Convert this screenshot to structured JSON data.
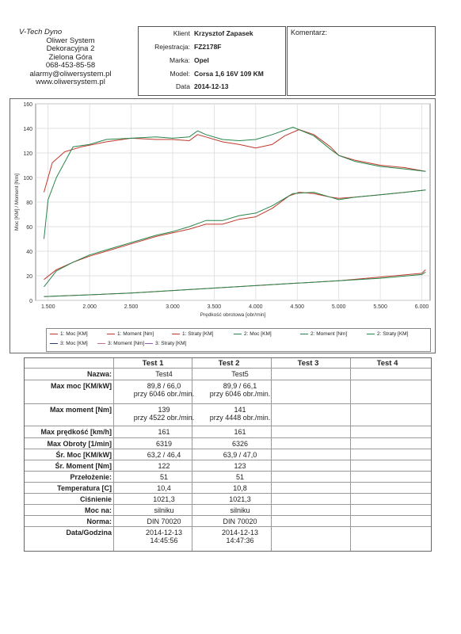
{
  "company": {
    "brand": "V-Tech Dyno",
    "lines": [
      "Oliwer System",
      "Dekoracyjna 2",
      "Zielona Góra",
      "068-453-85-58",
      "alarmy@oliwersystem.pl",
      "www.oliwersystem.pl"
    ]
  },
  "client": {
    "rows": [
      {
        "label": "Klient",
        "value": "Krzysztof Zapasek"
      },
      {
        "label": "Rejestracja:",
        "value": "FZ2178F"
      },
      {
        "label": "Marka:",
        "value": "Opel"
      },
      {
        "label": "Model:",
        "value": "Corsa  1,6 16V   109 KM"
      },
      {
        "label": "Data",
        "value": "2014-12-13"
      }
    ]
  },
  "komentarz_label": "Komentarz:",
  "chart_data": {
    "type": "line",
    "xlabel": "Prędkość obrotowa [obr/min]",
    "ylabel": "Moc [KM] / Moment [Nm]",
    "xlim": [
      1350,
      6100
    ],
    "ylim": [
      0,
      160
    ],
    "x_ticks": [
      "1.500",
      "2.000",
      "2.500",
      "3.000",
      "3.500",
      "4.000",
      "4.500",
      "5.000",
      "5.500",
      "6.000"
    ],
    "x_tick_values": [
      1500,
      2000,
      2500,
      3000,
      3500,
      4000,
      4500,
      5000,
      5500,
      6000
    ],
    "y_ticks": [
      "0",
      "20",
      "40",
      "60",
      "80",
      "100",
      "120",
      "140",
      "160"
    ],
    "y_tick_values": [
      0,
      20,
      40,
      60,
      80,
      100,
      120,
      140,
      160
    ],
    "grid": true,
    "series": [
      {
        "name": "1: Moc [KM]",
        "color": "#c0392b",
        "x": [
          1450,
          1600,
          1800,
          2000,
          2200,
          2500,
          2800,
          3000,
          3200,
          3400,
          3600,
          3800,
          4000,
          4200,
          4400,
          4522,
          4700,
          4900,
          5000,
          5200,
          5500,
          5800,
          6046
        ],
        "y": [
          17,
          25,
          31,
          36,
          40,
          46,
          52,
          55,
          58,
          62,
          62,
          66,
          68,
          75,
          85,
          88,
          87,
          84,
          83,
          84,
          86,
          88,
          89.8
        ]
      },
      {
        "name": "1: Moment [Nm]",
        "color": "#c0392b",
        "x": [
          1450,
          1550,
          1700,
          1900,
          2200,
          2500,
          2800,
          3000,
          3200,
          3300,
          3400,
          3600,
          3800,
          4000,
          4200,
          4350,
          4522,
          4700,
          4900,
          5000,
          5200,
          5500,
          5800,
          6046
        ],
        "y": [
          88,
          112,
          121,
          125,
          129,
          132,
          131,
          131,
          130,
          135,
          133,
          129,
          127,
          124,
          127,
          134,
          139,
          135,
          125,
          118,
          114,
          110,
          108,
          105
        ]
      },
      {
        "name": "1: Straty [KM]",
        "color": "#c0392b",
        "x": [
          1450,
          2000,
          2500,
          3000,
          3500,
          4000,
          4500,
          5000,
          5500,
          6000,
          6046
        ],
        "y": [
          3,
          4.5,
          6,
          8,
          10,
          12,
          14,
          16,
          19,
          22,
          25
        ]
      },
      {
        "name": "2: Moc [KM]",
        "color": "#27864a",
        "x": [
          1450,
          1600,
          1800,
          2000,
          2200,
          2500,
          2800,
          3000,
          3200,
          3400,
          3600,
          3800,
          4000,
          4200,
          4448,
          4700,
          4900,
          5000,
          5200,
          5500,
          5800,
          6046
        ],
        "y": [
          11,
          24,
          31,
          37,
          41,
          47,
          53,
          56,
          60,
          65,
          65,
          69,
          71,
          77,
          87,
          88,
          84,
          82,
          84,
          86,
          88,
          89.9
        ]
      },
      {
        "name": "2: Moment [Nm]",
        "color": "#27864a",
        "x": [
          1450,
          1500,
          1600,
          1800,
          2000,
          2200,
          2500,
          2800,
          3000,
          3200,
          3300,
          3400,
          3600,
          3800,
          4000,
          4200,
          4448,
          4700,
          4900,
          5000,
          5200,
          5500,
          5800,
          6046
        ],
        "y": [
          50,
          82,
          100,
          125,
          127,
          131,
          132,
          133,
          132,
          133,
          138,
          135,
          131,
          130,
          131,
          135,
          141,
          134,
          123,
          118,
          113,
          109,
          107,
          105
        ]
      },
      {
        "name": "2: Straty [KM]",
        "color": "#27864a",
        "x": [
          1450,
          2000,
          2500,
          3000,
          3500,
          4000,
          4500,
          5000,
          5500,
          6000,
          6046
        ],
        "y": [
          3,
          4.5,
          6,
          8,
          10,
          12,
          14,
          16,
          18,
          21,
          23
        ]
      },
      {
        "name": "3: Moc [KM]",
        "color": "#2c3e70",
        "x": [],
        "y": []
      },
      {
        "name": "3: Moment [Nm]",
        "color": "#c76a9a",
        "x": [],
        "y": []
      },
      {
        "name": "3: Straty [KM]",
        "color": "#9b59b6",
        "x": [],
        "y": []
      }
    ]
  },
  "table": {
    "headers": [
      "Test 1",
      "Test 2",
      "Test 3",
      "Test 4"
    ],
    "rows": [
      {
        "label": "Nazwa:",
        "values": [
          "Test4",
          "Test5",
          "",
          ""
        ]
      },
      {
        "label": "Max moc [KM/kW]",
        "values": [
          "89,8 / 66,0\nprzy 6046 obr./min.",
          "89,9 / 66,1\nprzy 6046 obr./min.",
          "",
          ""
        ]
      },
      {
        "label": "Max moment [Nm]",
        "values": [
          "139\nprzy 4522 obr./min.",
          "141\nprzy 4448 obr./min.",
          "",
          ""
        ]
      },
      {
        "label": "Max prędkość [km/h]",
        "values": [
          "161",
          "161",
          "",
          ""
        ]
      },
      {
        "label": "Max Obroty [1/min]",
        "values": [
          "6319",
          "6326",
          "",
          ""
        ]
      },
      {
        "label": "Śr. Moc [KM/kW]",
        "values": [
          "63,2 / 46,4",
          "63,9 / 47,0",
          "",
          ""
        ]
      },
      {
        "label": "Śr. Moment [Nm]",
        "values": [
          "122",
          "123",
          "",
          ""
        ]
      },
      {
        "label": "Przełożenie:",
        "values": [
          "51",
          "51",
          "",
          ""
        ]
      },
      {
        "label": "Temperatura [C]",
        "values": [
          "10,4",
          "10,8",
          "",
          ""
        ]
      },
      {
        "label": "Ciśnienie",
        "values": [
          "1021,3",
          "1021,3",
          "",
          ""
        ]
      },
      {
        "label": "Moc na:",
        "values": [
          "silniku",
          "silniku",
          "",
          ""
        ]
      },
      {
        "label": "Norma:",
        "values": [
          "DIN 70020",
          "DIN 70020",
          "",
          ""
        ]
      },
      {
        "label": "Data/Godzina",
        "values": [
          "2014-12-13\n14:45:56",
          "2014-12-13\n14:47:36",
          "",
          ""
        ]
      }
    ]
  }
}
